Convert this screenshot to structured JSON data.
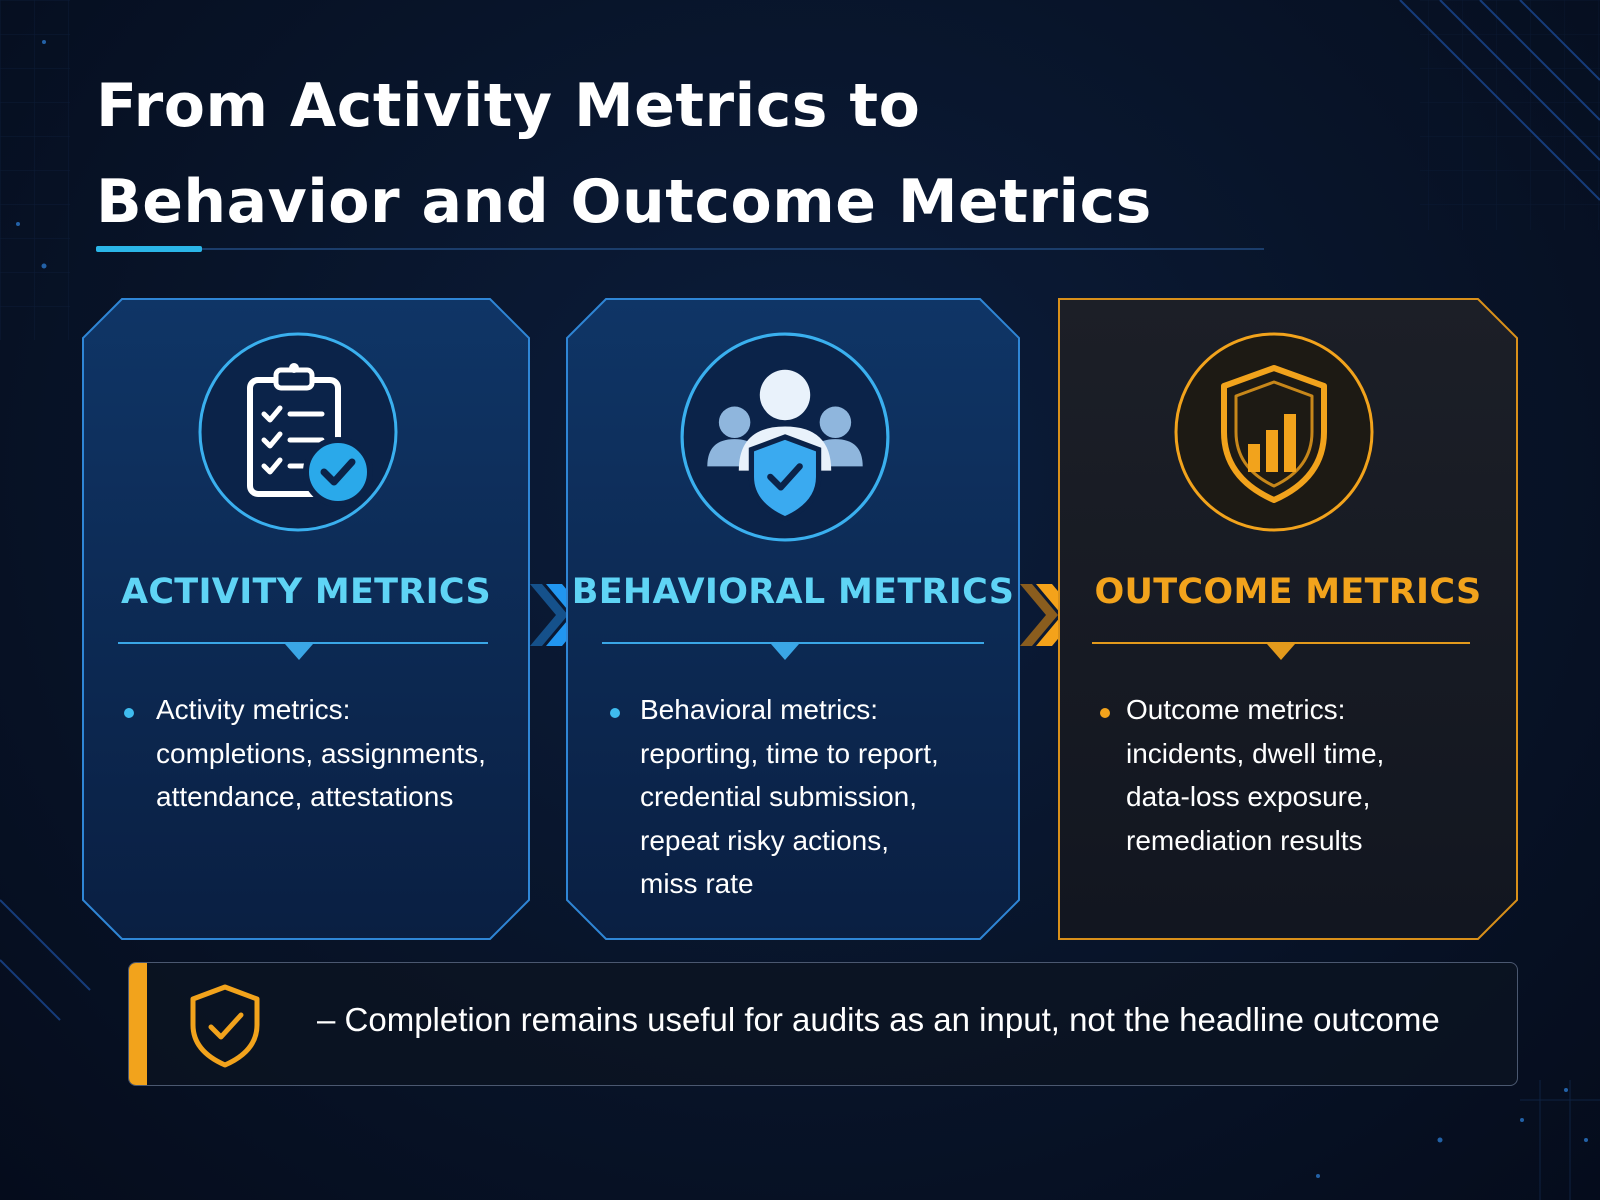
{
  "title": "From Activity Metrics to\nBehavior and Outcome Metrics",
  "colors": {
    "background": "#081429",
    "blue_accent": "#2bb6e8",
    "title_cyan": "#5fd4f5",
    "orange_accent": "#f2a31c"
  },
  "cards": [
    {
      "icon": "clipboard-check-icon",
      "title": "ACTIVITY METRICS",
      "bullet": "Activity metrics:\ncompletions, assignments,\nattendance, attestations"
    },
    {
      "icon": "users-shield-icon",
      "title": "BEHAVIORAL METRICS",
      "bullet": "Behavioral metrics:\nreporting, time to report,\ncredential submission,\nrepeat risky actions,\nmiss rate"
    },
    {
      "icon": "shield-chart-icon",
      "title": "OUTCOME METRICS",
      "bullet": "Outcome metrics:\nincidents, dwell time,\ndata-loss exposure,\nremediation results"
    }
  ],
  "arrows": [
    "chevron-right-icon",
    "chevron-right-icon"
  ],
  "note": {
    "icon": "shield-check-icon",
    "text": "– Completion remains useful for audits as an input, not the headline outcome"
  }
}
